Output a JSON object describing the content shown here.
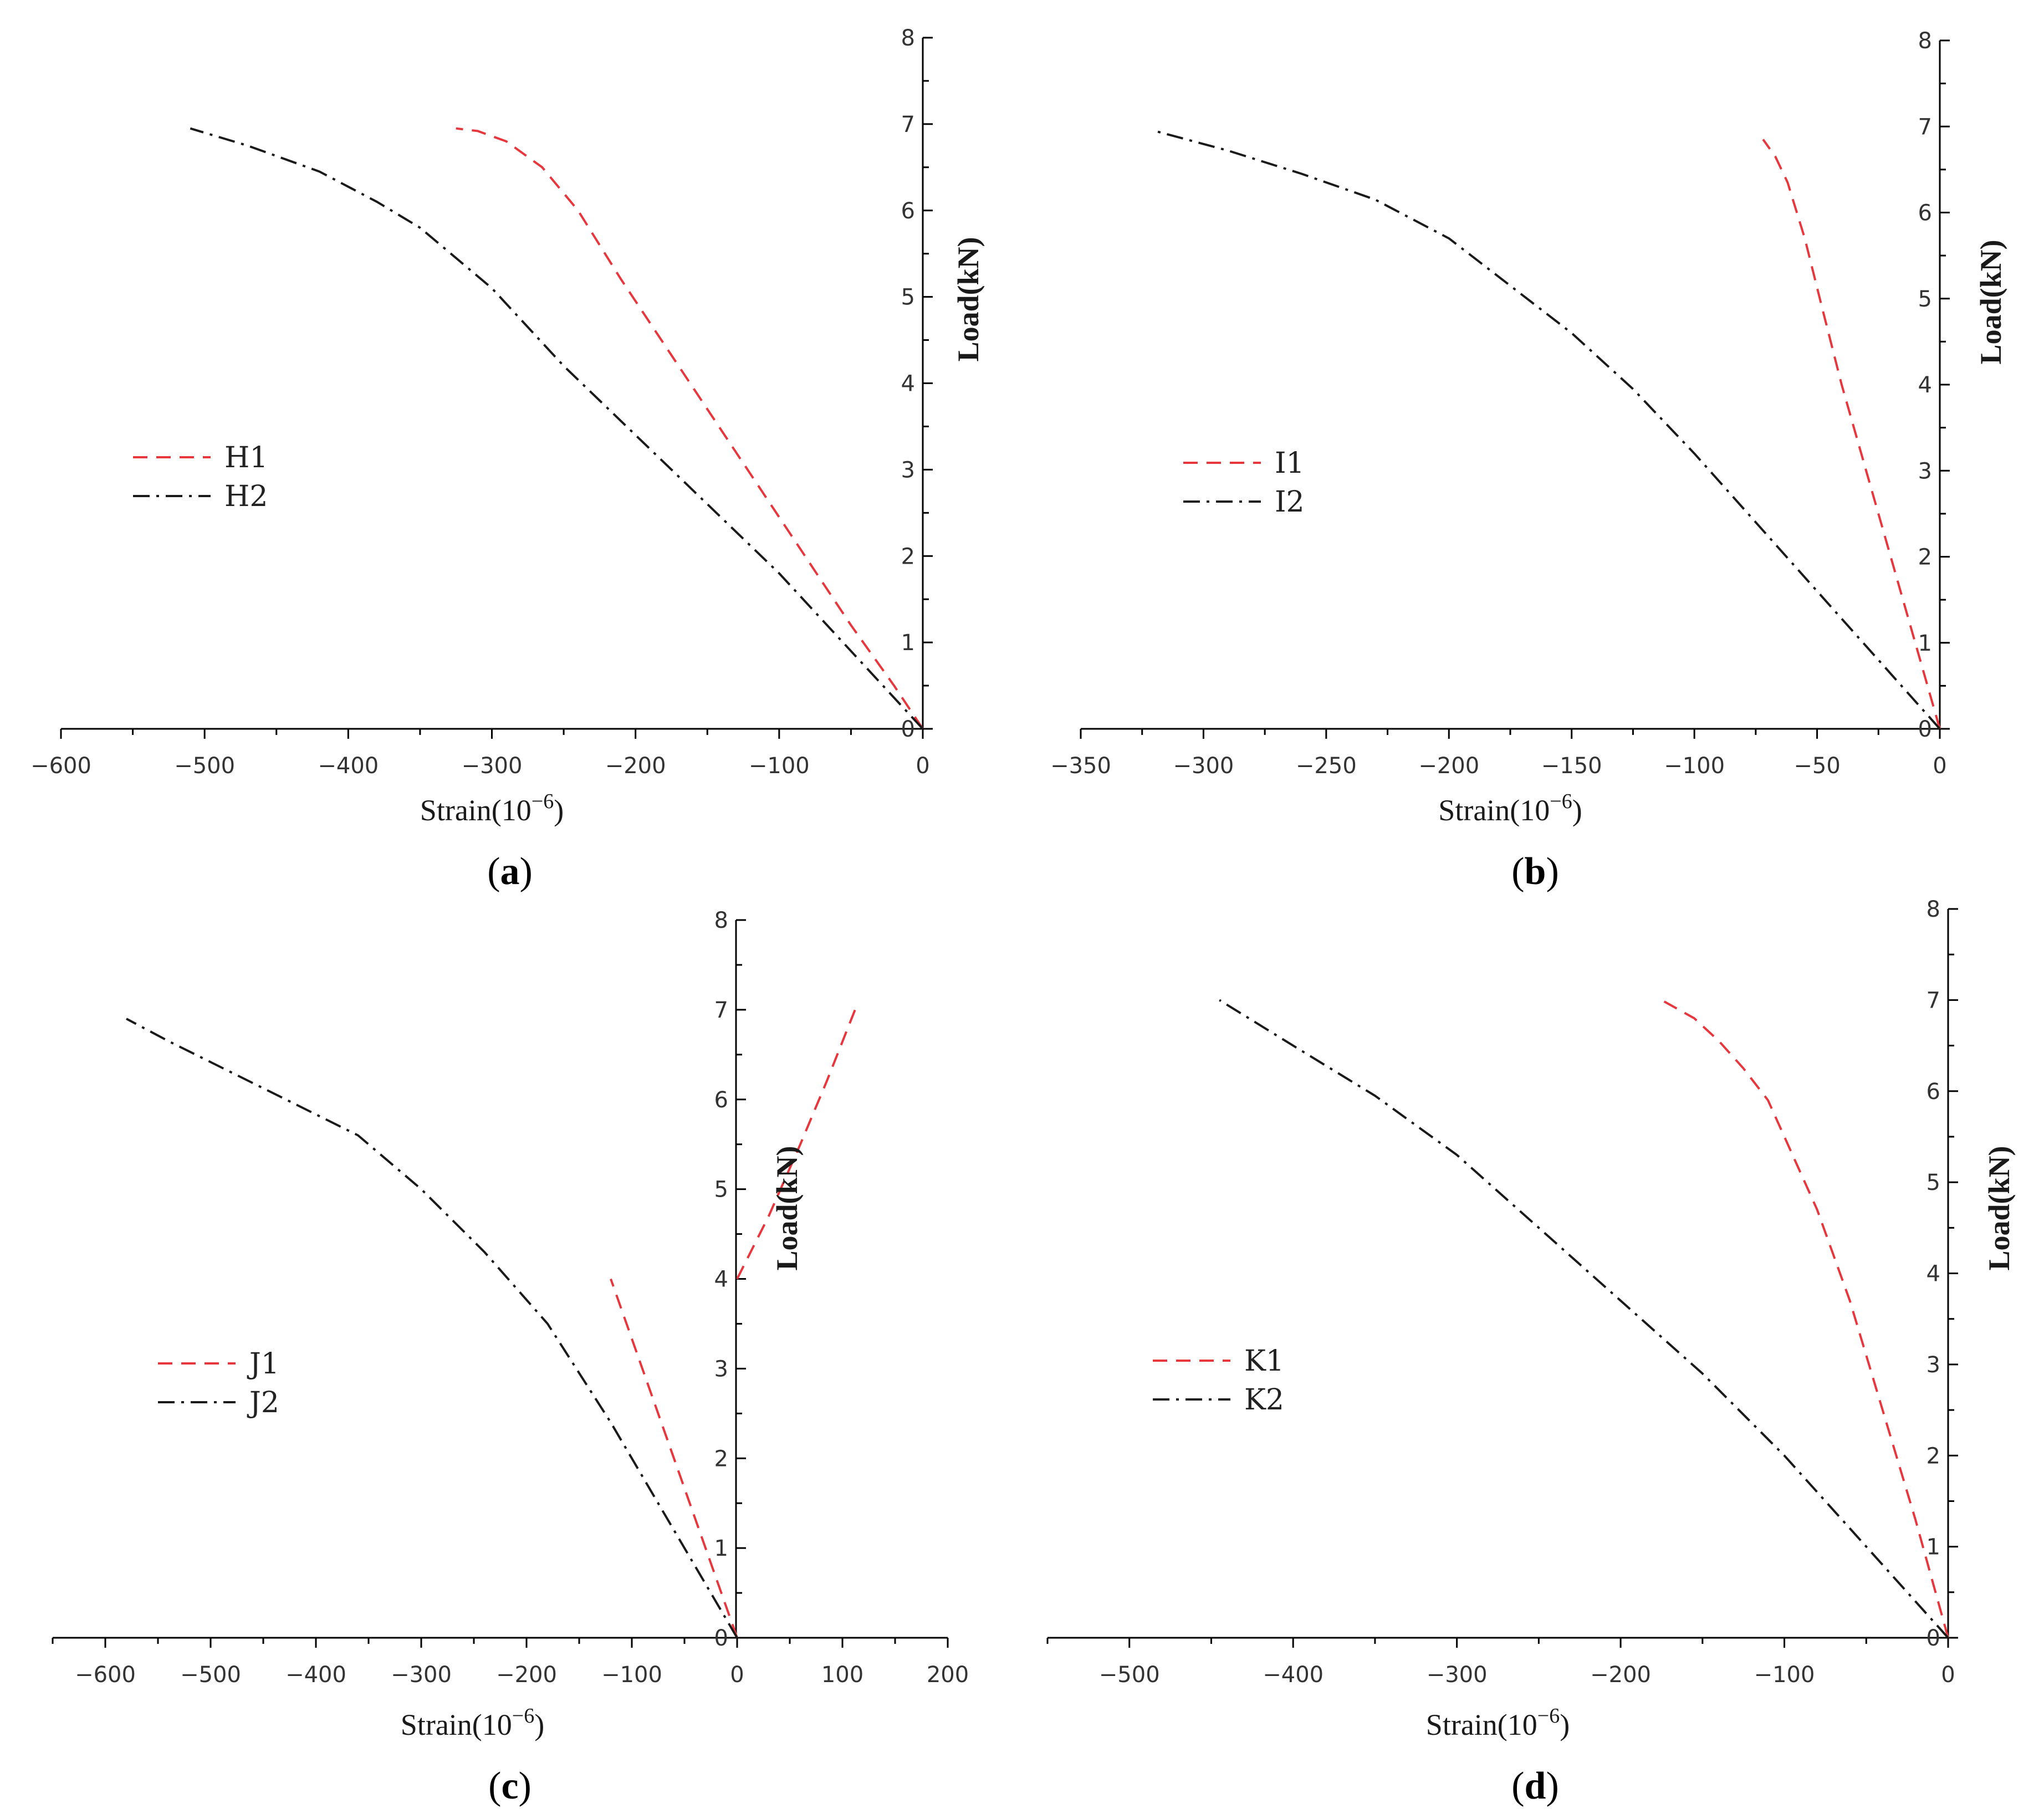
{
  "chart_data": [
    {
      "type": "line",
      "panel": "a",
      "panel_label": "a",
      "xlabel": "Strain(10",
      "xlabel_exp": "−6",
      "xlabel_close": ")",
      "ylabel": "Load(kN)",
      "xlim": [
        -600,
        0
      ],
      "ylim": [
        0,
        8
      ],
      "xticks": [
        -600,
        -500,
        -400,
        -300,
        -200,
        -100,
        0
      ],
      "yticks": [
        0,
        1,
        2,
        3,
        4,
        5,
        6,
        7,
        8
      ],
      "legend": {
        "position": "middle-left",
        "entries": [
          "H1",
          "H2"
        ]
      },
      "series": [
        {
          "name": "H1",
          "color": "#e8373c",
          "dash": "dashed",
          "x": [
            0,
            -20,
            -50,
            -90,
            -130,
            -170,
            -210,
            -240,
            -265,
            -290,
            -310,
            -325
          ],
          "y": [
            0,
            0.5,
            1.2,
            2.2,
            3.2,
            4.2,
            5.2,
            6.0,
            6.5,
            6.8,
            6.92,
            6.95
          ]
        },
        {
          "name": "H2",
          "color": "#1a1a1a",
          "dash": "dashdot",
          "x": [
            0,
            -50,
            -100,
            -150,
            -200,
            -250,
            -300,
            -350,
            -380,
            -420,
            -470,
            -510
          ],
          "y": [
            0,
            0.9,
            1.8,
            2.6,
            3.4,
            4.2,
            5.1,
            5.8,
            6.1,
            6.45,
            6.75,
            6.95
          ]
        }
      ]
    },
    {
      "type": "line",
      "panel": "b",
      "panel_label": "b",
      "xlabel": "Strain(10",
      "xlabel_exp": "−6",
      "xlabel_close": ")",
      "ylabel": "Load(kN)",
      "xlim": [
        -350,
        0
      ],
      "ylim": [
        0,
        8
      ],
      "xticks": [
        -350,
        -300,
        -250,
        -200,
        -150,
        -100,
        -50,
        0
      ],
      "yticks": [
        0,
        1,
        2,
        3,
        4,
        5,
        6,
        7,
        8
      ],
      "legend": {
        "position": "middle-left",
        "entries": [
          "I1",
          "I2"
        ]
      },
      "series": [
        {
          "name": "I1",
          "color": "#e8373c",
          "dash": "dashed",
          "x": [
            0,
            -10,
            -20,
            -30,
            -40,
            -48,
            -55,
            -62,
            -67,
            -72
          ],
          "y": [
            0,
            1.0,
            2.0,
            3.0,
            4.0,
            4.9,
            5.7,
            6.35,
            6.65,
            6.85
          ]
        },
        {
          "name": "I2",
          "color": "#1a1a1a",
          "dash": "dashdot",
          "x": [
            0,
            -25,
            -50,
            -75,
            -100,
            -125,
            -150,
            -175,
            -200,
            -230,
            -260,
            -290,
            -320
          ],
          "y": [
            0,
            0.8,
            1.6,
            2.4,
            3.2,
            3.95,
            4.6,
            5.15,
            5.7,
            6.15,
            6.45,
            6.72,
            6.95
          ]
        }
      ]
    },
    {
      "type": "line",
      "panel": "c",
      "panel_label": "c",
      "xlabel": "Strain(10",
      "xlabel_exp": "−6",
      "xlabel_close": ")",
      "ylabel": "Load(kN)",
      "xlim": [
        -650,
        200
      ],
      "ylim": [
        0,
        8
      ],
      "xticks": [
        -600,
        -500,
        -400,
        -300,
        -200,
        -100,
        0,
        100,
        200
      ],
      "yticks": [
        0,
        1,
        2,
        3,
        4,
        5,
        6,
        7,
        8
      ],
      "legend": {
        "position": "middle-left",
        "entries": [
          "J1",
          "J2"
        ]
      },
      "series": [
        {
          "name": "J1",
          "color": "#e8373c",
          "dash": "dashed",
          "x": [
            0,
            -30,
            -60,
            -90,
            -120
          ],
          "y": [
            0,
            1.0,
            2.0,
            3.0,
            4.0
          ]
        },
        {
          "name": "J1",
          "color": "#e8373c",
          "dash": "dashed",
          "x": [
            0,
            30,
            60,
            85,
            112
          ],
          "y": [
            4.0,
            4.7,
            5.5,
            6.2,
            7.0
          ]
        },
        {
          "name": "J2",
          "color": "#1a1a1a",
          "dash": "dashdot",
          "x": [
            0,
            -60,
            -120,
            -180,
            -240,
            -300,
            -360,
            -420,
            -480,
            -540,
            -580
          ],
          "y": [
            0,
            1.2,
            2.4,
            3.5,
            4.3,
            5.0,
            5.6,
            5.95,
            6.3,
            6.65,
            6.9
          ]
        }
      ]
    },
    {
      "type": "line",
      "panel": "d",
      "panel_label": "d",
      "xlabel": "Strain(10",
      "xlabel_exp": "−6",
      "xlabel_close": ")",
      "ylabel": "Load(kN)",
      "xlim": [
        -550,
        0
      ],
      "ylim": [
        0,
        8
      ],
      "xticks": [
        -500,
        -400,
        -300,
        -200,
        -100,
        0
      ],
      "yticks": [
        0,
        1,
        2,
        3,
        4,
        5,
        6,
        7,
        8
      ],
      "legend": {
        "position": "middle-left",
        "entries": [
          "K1",
          "K2"
        ]
      },
      "series": [
        {
          "name": "K1",
          "color": "#e8373c",
          "dash": "dashed",
          "x": [
            0,
            -20,
            -40,
            -60,
            -80,
            -95,
            -110,
            -125,
            -140,
            -155,
            -175
          ],
          "y": [
            0,
            1.3,
            2.5,
            3.7,
            4.7,
            5.3,
            5.9,
            6.25,
            6.55,
            6.8,
            7.0
          ]
        },
        {
          "name": "K2",
          "color": "#1a1a1a",
          "dash": "dashdot",
          "x": [
            0,
            -50,
            -100,
            -150,
            -200,
            -250,
            -300,
            -350,
            -400,
            -445
          ],
          "y": [
            0,
            1.0,
            2.0,
            2.9,
            3.7,
            4.5,
            5.3,
            5.95,
            6.5,
            7.0
          ]
        }
      ]
    }
  ]
}
